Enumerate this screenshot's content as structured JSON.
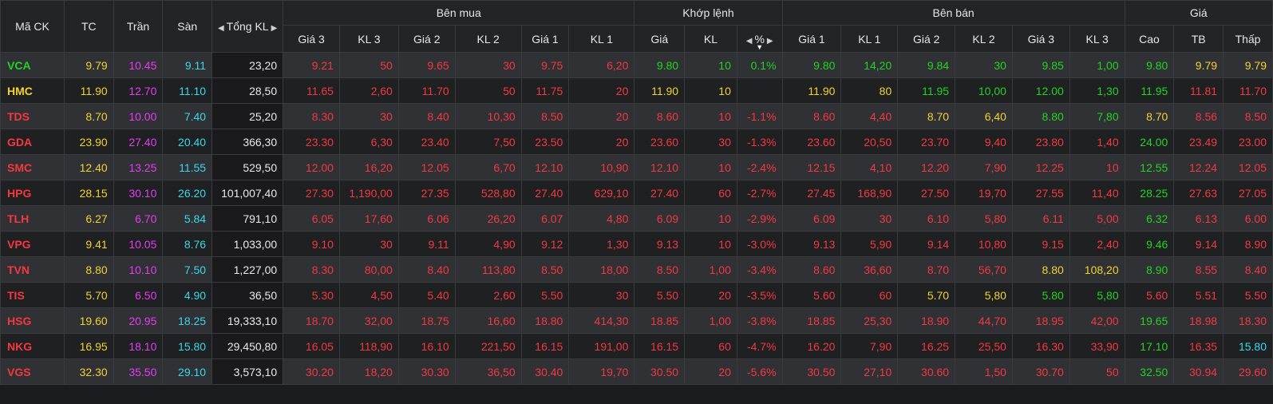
{
  "colors": {
    "green": "#21d41f",
    "yellow": "#f2d230",
    "red": "#f5383e",
    "purple": "#e43df2",
    "cyan": "#39d7ee",
    "white": "#e8e8e8"
  },
  "headers": {
    "symbol": "Mã CK",
    "ref": "TC",
    "ceiling": "Trần",
    "floor": "Sàn",
    "total_volume": "Tổng KL",
    "buy_group": "Bên mua",
    "match_group": "Khớp lệnh",
    "sell_group": "Bên bán",
    "price_group": "Giá",
    "buy": {
      "price3": "Giá 3",
      "vol3": "KL 3",
      "price2": "Giá 2",
      "vol2": "KL 2",
      "price1": "Giá 1",
      "vol1": "KL 1"
    },
    "match": {
      "price": "Giá",
      "vol": "KL",
      "pct": "%"
    },
    "sell": {
      "price1": "Giá 1",
      "vol1": "KL 1",
      "price2": "Giá 2",
      "vol2": "KL 2",
      "price3": "Giá 3",
      "vol3": "KL 3"
    },
    "price": {
      "high": "Cao",
      "avg": "TB",
      "low": "Thấp"
    }
  },
  "icons": {
    "total_vol_left": "caret-left-icon",
    "total_vol_right": "caret-right-icon",
    "pct_left": "caret-left-icon",
    "pct_right": "caret-right-icon",
    "pct_sort": "sort-down-icon"
  },
  "rows": [
    {
      "sym": "VCA",
      "symc": "green",
      "tc": "9.79",
      "tran": "10.45",
      "san": "9.11",
      "tkl": "23,20",
      "b": [
        [
          "9.21",
          "red"
        ],
        [
          "50",
          "red"
        ],
        [
          "9.65",
          "red"
        ],
        [
          "30",
          "red"
        ],
        [
          "9.75",
          "red"
        ],
        [
          "6,20",
          "red"
        ]
      ],
      "m": [
        [
          "9.80",
          "green"
        ],
        [
          "10",
          "green"
        ],
        [
          "0.1%",
          "green"
        ]
      ],
      "s": [
        [
          "9.80",
          "green"
        ],
        [
          "14,20",
          "green"
        ],
        [
          "9.84",
          "green"
        ],
        [
          "30",
          "green"
        ],
        [
          "9.85",
          "green"
        ],
        [
          "1,00",
          "green"
        ]
      ],
      "p": [
        [
          "9.80",
          "green"
        ],
        [
          "9.79",
          "yellow"
        ],
        [
          "9.79",
          "yellow"
        ]
      ]
    },
    {
      "sym": "HMC",
      "symc": "yellow",
      "tc": "11.90",
      "tran": "12.70",
      "san": "11.10",
      "tkl": "28,50",
      "b": [
        [
          "11.65",
          "red"
        ],
        [
          "2,60",
          "red"
        ],
        [
          "11.70",
          "red"
        ],
        [
          "50",
          "red"
        ],
        [
          "11.75",
          "red"
        ],
        [
          "20",
          "red"
        ]
      ],
      "m": [
        [
          "11.90",
          "yellow"
        ],
        [
          "10",
          "yellow"
        ],
        [
          "",
          "yellow"
        ]
      ],
      "s": [
        [
          "11.90",
          "yellow"
        ],
        [
          "80",
          "yellow"
        ],
        [
          "11.95",
          "green"
        ],
        [
          "10,00",
          "green"
        ],
        [
          "12.00",
          "green"
        ],
        [
          "1,30",
          "green"
        ]
      ],
      "p": [
        [
          "11.95",
          "green"
        ],
        [
          "11.81",
          "red"
        ],
        [
          "11.70",
          "red"
        ]
      ]
    },
    {
      "sym": "TDS",
      "symc": "red",
      "tc": "8.70",
      "tran": "10.00",
      "san": "7.40",
      "tkl": "25,20",
      "b": [
        [
          "8.30",
          "red"
        ],
        [
          "30",
          "red"
        ],
        [
          "8.40",
          "red"
        ],
        [
          "10,30",
          "red"
        ],
        [
          "8.50",
          "red"
        ],
        [
          "20",
          "red"
        ]
      ],
      "m": [
        [
          "8.60",
          "red"
        ],
        [
          "10",
          "red"
        ],
        [
          "-1.1%",
          "red"
        ]
      ],
      "s": [
        [
          "8.60",
          "red"
        ],
        [
          "4,40",
          "red"
        ],
        [
          "8.70",
          "yellow"
        ],
        [
          "6,40",
          "yellow"
        ],
        [
          "8.80",
          "green"
        ],
        [
          "7,80",
          "green"
        ]
      ],
      "p": [
        [
          "8.70",
          "yellow"
        ],
        [
          "8.56",
          "red"
        ],
        [
          "8.50",
          "red"
        ]
      ]
    },
    {
      "sym": "GDA",
      "symc": "red",
      "tc": "23.90",
      "tran": "27.40",
      "san": "20.40",
      "tkl": "366,30",
      "b": [
        [
          "23.30",
          "red"
        ],
        [
          "6,30",
          "red"
        ],
        [
          "23.40",
          "red"
        ],
        [
          "7,50",
          "red"
        ],
        [
          "23.50",
          "red"
        ],
        [
          "20",
          "red"
        ]
      ],
      "m": [
        [
          "23.60",
          "red"
        ],
        [
          "30",
          "red"
        ],
        [
          "-1.3%",
          "red"
        ]
      ],
      "s": [
        [
          "23.60",
          "red"
        ],
        [
          "20,50",
          "red"
        ],
        [
          "23.70",
          "red"
        ],
        [
          "9,40",
          "red"
        ],
        [
          "23.80",
          "red"
        ],
        [
          "1,40",
          "red"
        ]
      ],
      "p": [
        [
          "24.00",
          "green"
        ],
        [
          "23.49",
          "red"
        ],
        [
          "23.00",
          "red"
        ]
      ]
    },
    {
      "sym": "SMC",
      "symc": "red",
      "tc": "12.40",
      "tran": "13.25",
      "san": "11.55",
      "tkl": "529,50",
      "b": [
        [
          "12.00",
          "red"
        ],
        [
          "16,20",
          "red"
        ],
        [
          "12.05",
          "red"
        ],
        [
          "6,70",
          "red"
        ],
        [
          "12.10",
          "red"
        ],
        [
          "10,90",
          "red"
        ]
      ],
      "m": [
        [
          "12.10",
          "red"
        ],
        [
          "10",
          "red"
        ],
        [
          "-2.4%",
          "red"
        ]
      ],
      "s": [
        [
          "12.15",
          "red"
        ],
        [
          "4,10",
          "red"
        ],
        [
          "12.20",
          "red"
        ],
        [
          "7,90",
          "red"
        ],
        [
          "12.25",
          "red"
        ],
        [
          "10",
          "red"
        ]
      ],
      "p": [
        [
          "12.55",
          "green"
        ],
        [
          "12.24",
          "red"
        ],
        [
          "12.05",
          "red"
        ]
      ]
    },
    {
      "sym": "HPG",
      "symc": "red",
      "tc": "28.15",
      "tran": "30.10",
      "san": "26.20",
      "tkl": "101,007,40",
      "b": [
        [
          "27.30",
          "red"
        ],
        [
          "1,190,00",
          "red"
        ],
        [
          "27.35",
          "red"
        ],
        [
          "528,80",
          "red"
        ],
        [
          "27.40",
          "red"
        ],
        [
          "629,10",
          "red"
        ]
      ],
      "m": [
        [
          "27.40",
          "red"
        ],
        [
          "60",
          "red"
        ],
        [
          "-2.7%",
          "red"
        ]
      ],
      "s": [
        [
          "27.45",
          "red"
        ],
        [
          "168,90",
          "red"
        ],
        [
          "27.50",
          "red"
        ],
        [
          "19,70",
          "red"
        ],
        [
          "27.55",
          "red"
        ],
        [
          "11,40",
          "red"
        ]
      ],
      "p": [
        [
          "28.25",
          "green"
        ],
        [
          "27.63",
          "red"
        ],
        [
          "27.05",
          "red"
        ]
      ]
    },
    {
      "sym": "TLH",
      "symc": "red",
      "tc": "6.27",
      "tran": "6.70",
      "san": "5.84",
      "tkl": "791,10",
      "b": [
        [
          "6.05",
          "red"
        ],
        [
          "17,60",
          "red"
        ],
        [
          "6.06",
          "red"
        ],
        [
          "26,20",
          "red"
        ],
        [
          "6.07",
          "red"
        ],
        [
          "4,80",
          "red"
        ]
      ],
      "m": [
        [
          "6.09",
          "red"
        ],
        [
          "10",
          "red"
        ],
        [
          "-2.9%",
          "red"
        ]
      ],
      "s": [
        [
          "6.09",
          "red"
        ],
        [
          "30",
          "red"
        ],
        [
          "6.10",
          "red"
        ],
        [
          "5,80",
          "red"
        ],
        [
          "6.11",
          "red"
        ],
        [
          "5,00",
          "red"
        ]
      ],
      "p": [
        [
          "6.32",
          "green"
        ],
        [
          "6.13",
          "red"
        ],
        [
          "6.00",
          "red"
        ]
      ]
    },
    {
      "sym": "VPG",
      "symc": "red",
      "tc": "9.41",
      "tran": "10.05",
      "san": "8.76",
      "tkl": "1,033,00",
      "b": [
        [
          "9.10",
          "red"
        ],
        [
          "30",
          "red"
        ],
        [
          "9.11",
          "red"
        ],
        [
          "4,90",
          "red"
        ],
        [
          "9.12",
          "red"
        ],
        [
          "1,30",
          "red"
        ]
      ],
      "m": [
        [
          "9.13",
          "red"
        ],
        [
          "10",
          "red"
        ],
        [
          "-3.0%",
          "red"
        ]
      ],
      "s": [
        [
          "9.13",
          "red"
        ],
        [
          "5,90",
          "red"
        ],
        [
          "9.14",
          "red"
        ],
        [
          "10,80",
          "red"
        ],
        [
          "9.15",
          "red"
        ],
        [
          "2,40",
          "red"
        ]
      ],
      "p": [
        [
          "9.46",
          "green"
        ],
        [
          "9.14",
          "red"
        ],
        [
          "8.90",
          "red"
        ]
      ]
    },
    {
      "sym": "TVN",
      "symc": "red",
      "tc": "8.80",
      "tran": "10.10",
      "san": "7.50",
      "tkl": "1,227,00",
      "b": [
        [
          "8.30",
          "red"
        ],
        [
          "80,00",
          "red"
        ],
        [
          "8.40",
          "red"
        ],
        [
          "113,80",
          "red"
        ],
        [
          "8.50",
          "red"
        ],
        [
          "18,00",
          "red"
        ]
      ],
      "m": [
        [
          "8.50",
          "red"
        ],
        [
          "1,00",
          "red"
        ],
        [
          "-3.4%",
          "red"
        ]
      ],
      "s": [
        [
          "8.60",
          "red"
        ],
        [
          "36,60",
          "red"
        ],
        [
          "8.70",
          "red"
        ],
        [
          "56,70",
          "red"
        ],
        [
          "8.80",
          "yellow"
        ],
        [
          "108,20",
          "yellow"
        ]
      ],
      "p": [
        [
          "8.90",
          "green"
        ],
        [
          "8.55",
          "red"
        ],
        [
          "8.40",
          "red"
        ]
      ]
    },
    {
      "sym": "TIS",
      "symc": "red",
      "tc": "5.70",
      "tran": "6.50",
      "san": "4.90",
      "tkl": "36,50",
      "b": [
        [
          "5.30",
          "red"
        ],
        [
          "4,50",
          "red"
        ],
        [
          "5.40",
          "red"
        ],
        [
          "2,60",
          "red"
        ],
        [
          "5.50",
          "red"
        ],
        [
          "30",
          "red"
        ]
      ],
      "m": [
        [
          "5.50",
          "red"
        ],
        [
          "20",
          "red"
        ],
        [
          "-3.5%",
          "red"
        ]
      ],
      "s": [
        [
          "5.60",
          "red"
        ],
        [
          "60",
          "red"
        ],
        [
          "5.70",
          "yellow"
        ],
        [
          "5,80",
          "yellow"
        ],
        [
          "5.80",
          "green"
        ],
        [
          "5,80",
          "green"
        ]
      ],
      "p": [
        [
          "5.60",
          "red"
        ],
        [
          "5.51",
          "red"
        ],
        [
          "5.50",
          "red"
        ]
      ]
    },
    {
      "sym": "HSG",
      "symc": "red",
      "tc": "19.60",
      "tran": "20.95",
      "san": "18.25",
      "tkl": "19,333,10",
      "b": [
        [
          "18.70",
          "red"
        ],
        [
          "32,00",
          "red"
        ],
        [
          "18.75",
          "red"
        ],
        [
          "16,60",
          "red"
        ],
        [
          "18.80",
          "red"
        ],
        [
          "414,30",
          "red"
        ]
      ],
      "m": [
        [
          "18.85",
          "red"
        ],
        [
          "1,00",
          "red"
        ],
        [
          "-3.8%",
          "red"
        ]
      ],
      "s": [
        [
          "18.85",
          "red"
        ],
        [
          "25,30",
          "red"
        ],
        [
          "18.90",
          "red"
        ],
        [
          "44,70",
          "red"
        ],
        [
          "18.95",
          "red"
        ],
        [
          "42,00",
          "red"
        ]
      ],
      "p": [
        [
          "19.65",
          "green"
        ],
        [
          "18.98",
          "red"
        ],
        [
          "18.30",
          "red"
        ]
      ]
    },
    {
      "sym": "NKG",
      "symc": "red",
      "tc": "16.95",
      "tran": "18.10",
      "san": "15.80",
      "tkl": "29,450,80",
      "b": [
        [
          "16.05",
          "red"
        ],
        [
          "118,90",
          "red"
        ],
        [
          "16.10",
          "red"
        ],
        [
          "221,50",
          "red"
        ],
        [
          "16.15",
          "red"
        ],
        [
          "191,00",
          "red"
        ]
      ],
      "m": [
        [
          "16.15",
          "red"
        ],
        [
          "60",
          "red"
        ],
        [
          "-4.7%",
          "red"
        ]
      ],
      "s": [
        [
          "16.20",
          "red"
        ],
        [
          "7,90",
          "red"
        ],
        [
          "16.25",
          "red"
        ],
        [
          "25,50",
          "red"
        ],
        [
          "16.30",
          "red"
        ],
        [
          "33,90",
          "red"
        ]
      ],
      "p": [
        [
          "17.10",
          "green"
        ],
        [
          "16.35",
          "red"
        ],
        [
          "15.80",
          "cyan"
        ]
      ]
    },
    {
      "sym": "VGS",
      "symc": "red",
      "tc": "32.30",
      "tran": "35.50",
      "san": "29.10",
      "tkl": "3,573,10",
      "b": [
        [
          "30.20",
          "red"
        ],
        [
          "18,20",
          "red"
        ],
        [
          "30.30",
          "red"
        ],
        [
          "36,50",
          "red"
        ],
        [
          "30.40",
          "red"
        ],
        [
          "19,70",
          "red"
        ]
      ],
      "m": [
        [
          "30.50",
          "red"
        ],
        [
          "20",
          "red"
        ],
        [
          "-5.6%",
          "red"
        ]
      ],
      "s": [
        [
          "30.50",
          "red"
        ],
        [
          "27,10",
          "red"
        ],
        [
          "30.60",
          "red"
        ],
        [
          "1,50",
          "red"
        ],
        [
          "30.70",
          "red"
        ],
        [
          "50",
          "red"
        ]
      ],
      "p": [
        [
          "32.50",
          "green"
        ],
        [
          "30.94",
          "red"
        ],
        [
          "29.60",
          "red"
        ]
      ]
    }
  ]
}
